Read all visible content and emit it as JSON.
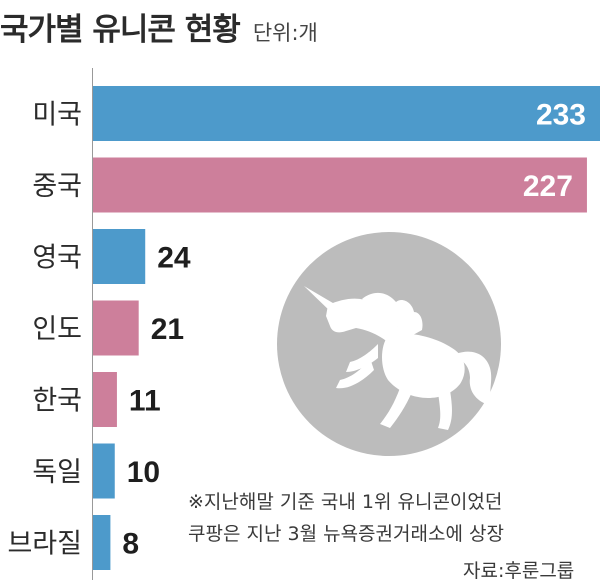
{
  "header": {
    "title": "국가별 유니콘 현황",
    "unit": "단위:개"
  },
  "chart_data": {
    "type": "bar",
    "orientation": "horizontal",
    "title": "국가별 유니콘 현황",
    "unit": "단위:개",
    "categories": [
      "미국",
      "중국",
      "영국",
      "인도",
      "한국",
      "독일",
      "브라질"
    ],
    "values": [
      233,
      227,
      24,
      21,
      11,
      10,
      8
    ],
    "data_labels": [
      "233",
      "227",
      "24",
      "21",
      "11",
      "10",
      "8"
    ],
    "xlim": [
      0,
      233
    ],
    "colors": [
      "#4d9acb",
      "#cd7f9b",
      "#4d9acb",
      "#cd7f9b",
      "#cd7f9b",
      "#4d9acb",
      "#4d9acb"
    ],
    "grid": false,
    "legend": "none"
  },
  "illustration": {
    "name": "unicorn-icon",
    "circle_color": "#bcbcbc",
    "figure_color": "#ffffff"
  },
  "note": {
    "line1": "※지난해말 기준 국내 1위 유니콘이었던",
    "line2": "쿠팡은 지난 3월 뉴욕증권거래소에 상장"
  },
  "source": "자료:후룬그룹"
}
